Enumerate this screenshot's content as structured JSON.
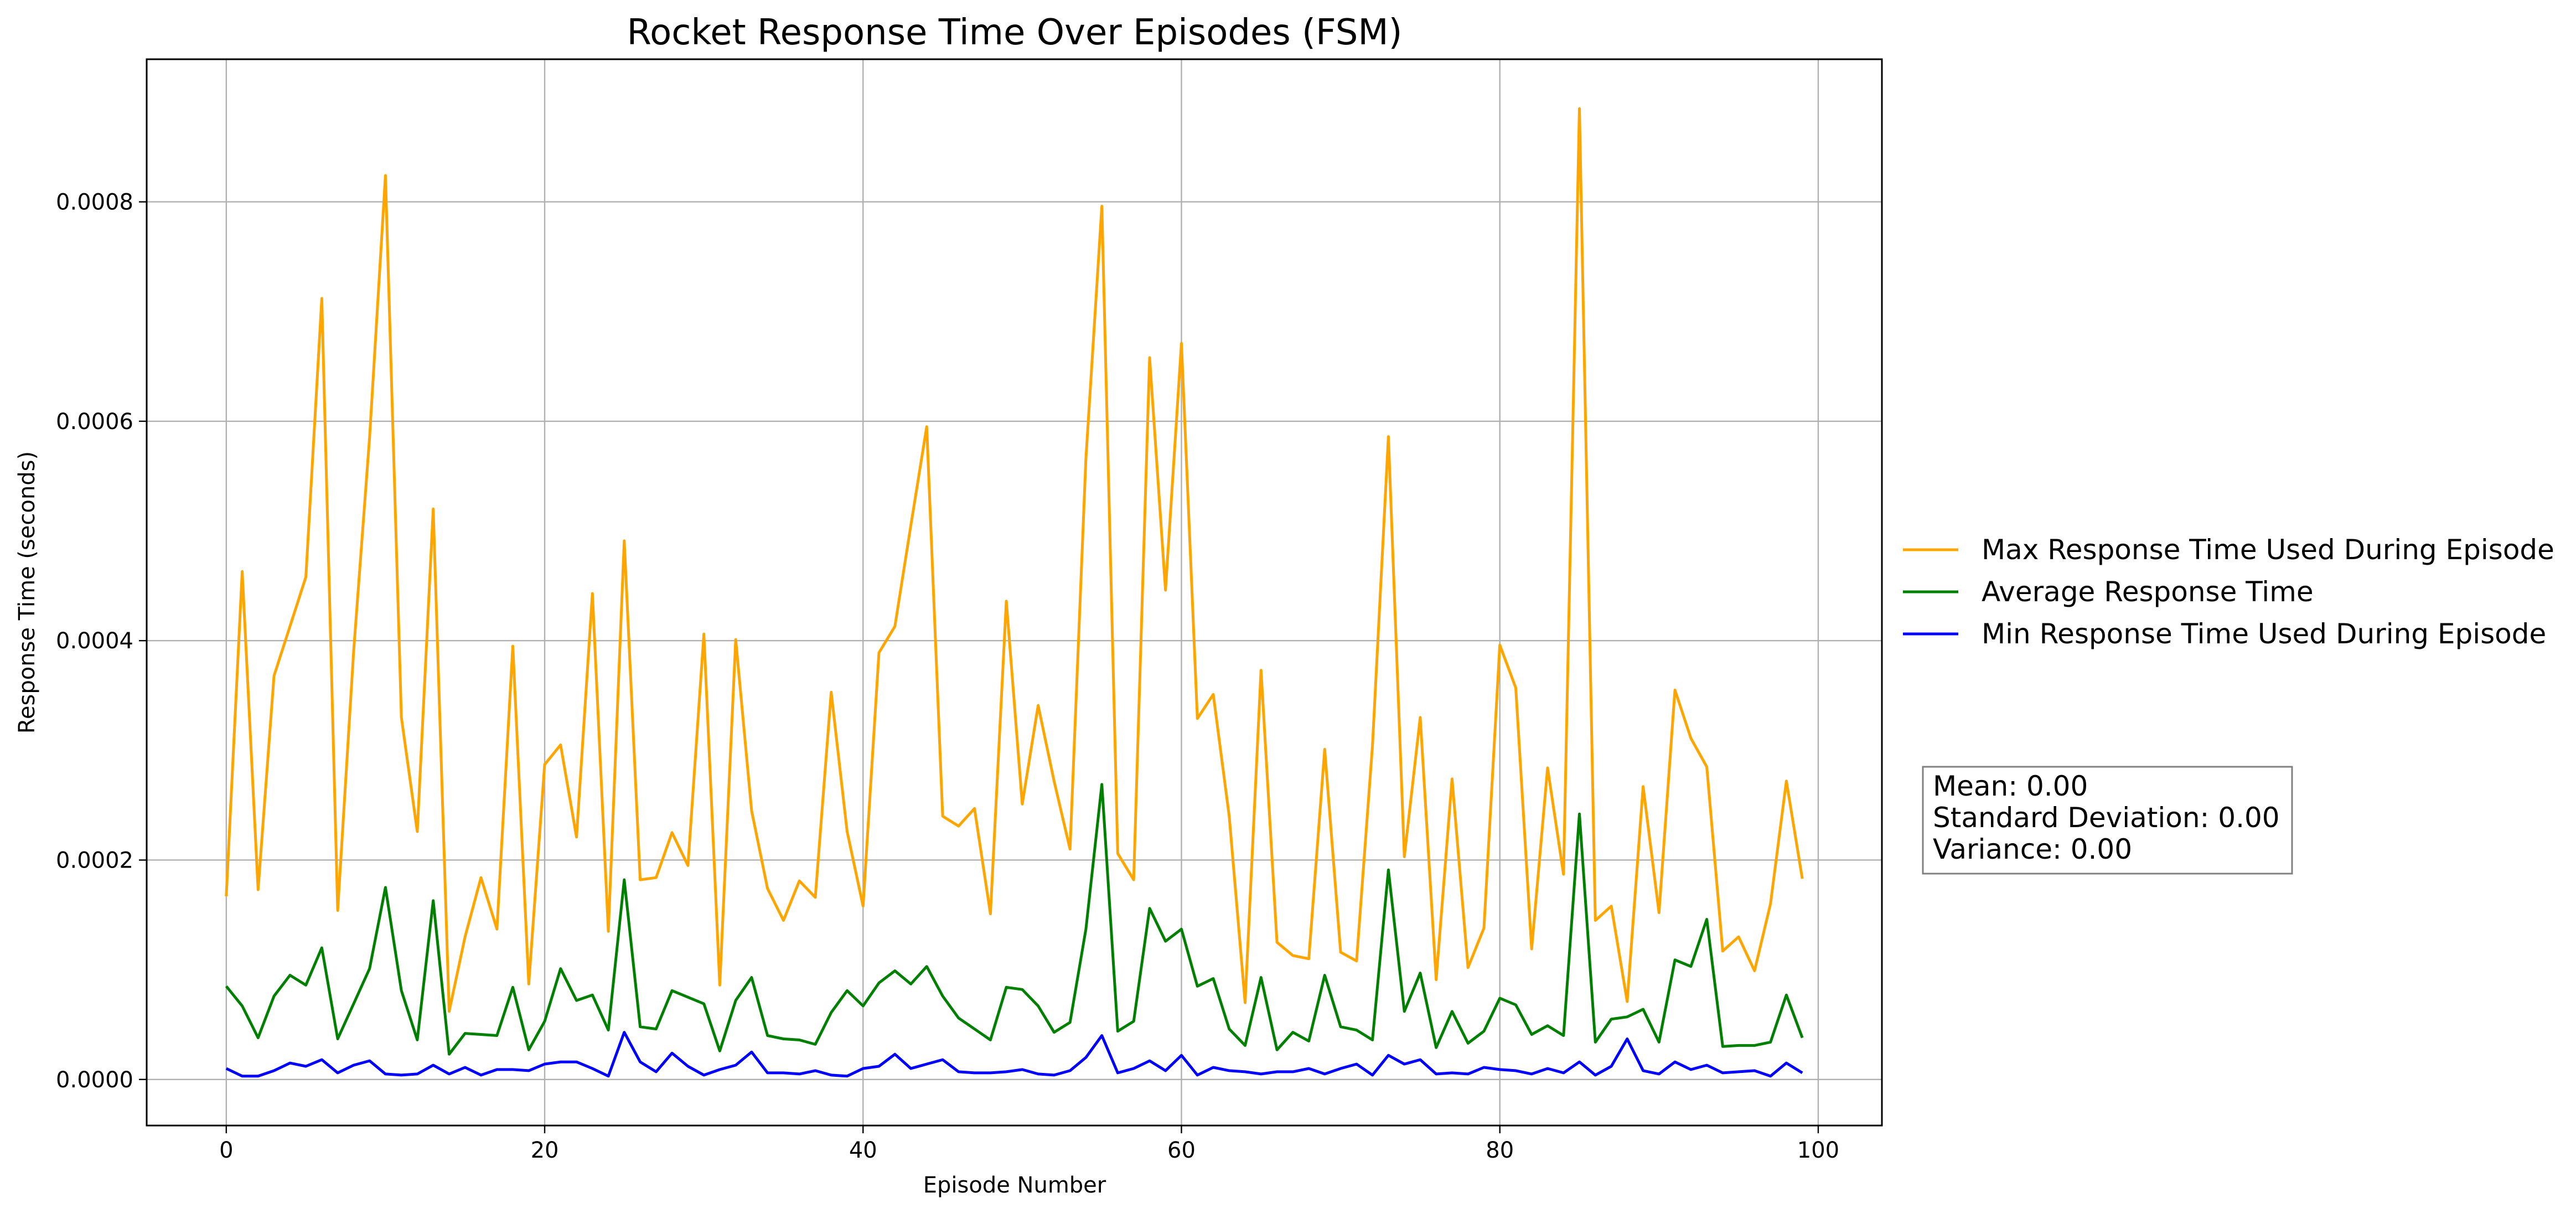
{
  "chart_data": {
    "type": "line",
    "title": "Rocket Response Time Over Episodes (FSM)",
    "xlabel": "Episode Number",
    "ylabel": "Response Time (seconds)",
    "xlim": [
      -5,
      104
    ],
    "ylim": [
      -4.2e-05,
      0.00093
    ],
    "grid": true,
    "x_ticks": [
      0,
      20,
      40,
      60,
      80,
      100
    ],
    "y_ticks": [
      0.0,
      0.0002,
      0.0004,
      0.0006,
      0.0008
    ],
    "x_tick_labels": [
      "0",
      "20",
      "40",
      "60",
      "80",
      "100"
    ],
    "y_tick_labels": [
      "0.0000",
      "0.0002",
      "0.0004",
      "0.0006",
      "0.0008"
    ],
    "legend_position": "outside-right",
    "x": [
      0,
      1,
      2,
      3,
      4,
      5,
      6,
      7,
      8,
      9,
      10,
      11,
      12,
      13,
      14,
      15,
      16,
      17,
      18,
      19,
      20,
      21,
      22,
      23,
      24,
      25,
      26,
      27,
      28,
      29,
      30,
      31,
      32,
      33,
      34,
      35,
      36,
      37,
      38,
      39,
      40,
      41,
      42,
      43,
      44,
      45,
      46,
      47,
      48,
      49,
      50,
      51,
      52,
      53,
      54,
      55,
      56,
      57,
      58,
      59,
      60,
      61,
      62,
      63,
      64,
      65,
      66,
      67,
      68,
      69,
      70,
      71,
      72,
      73,
      74,
      75,
      76,
      77,
      78,
      79,
      80,
      81,
      82,
      83,
      84,
      85,
      86,
      87,
      88,
      89,
      90,
      91,
      92,
      93,
      94,
      95,
      96,
      97,
      98,
      99
    ],
    "series": [
      {
        "name": "Max Response Time Used During Episode",
        "color": "#ffa500",
        "values": [
          0.000167,
          0.000463,
          0.000173,
          0.000368,
          0.000413,
          0.000458,
          0.000712,
          0.000154,
          0.00039,
          0.000585,
          0.000824,
          0.00033,
          0.000226,
          0.00052,
          6.2e-05,
          0.00013,
          0.000184,
          0.000137,
          0.000395,
          8.7e-05,
          0.000287,
          0.000305,
          0.000221,
          0.000443,
          0.000135,
          0.000491,
          0.000182,
          0.000184,
          0.000225,
          0.000195,
          0.000406,
          8.6e-05,
          0.000401,
          0.000245,
          0.000174,
          0.000145,
          0.000181,
          0.000166,
          0.000353,
          0.000226,
          0.000158,
          0.000389,
          0.000413,
          0.000505,
          0.000595,
          0.00024,
          0.000231,
          0.000247,
          0.000151,
          0.000436,
          0.000251,
          0.000341,
          0.000272,
          0.00021,
          0.000566,
          0.000796,
          0.000206,
          0.000182,
          0.000658,
          0.000446,
          0.000671,
          0.000329,
          0.000351,
          0.00024,
          7e-05,
          0.000373,
          0.000125,
          0.000113,
          0.00011,
          0.000301,
          0.000116,
          0.000108,
          0.000304,
          0.000586,
          0.000203,
          0.00033,
          9.1e-05,
          0.000274,
          0.000102,
          0.000138,
          0.000396,
          0.000357,
          0.000119,
          0.000284,
          0.000187,
          0.000885,
          0.000145,
          0.000158,
          7.1e-05,
          0.000267,
          0.000152,
          0.000355,
          0.000311,
          0.000285,
          0.000117,
          0.00013,
          9.9e-05,
          0.00016,
          0.000272,
          0.000183
        ]
      },
      {
        "name": "Average Response Time",
        "color": "#008000",
        "values": [
          8.5e-05,
          6.7e-05,
          3.8e-05,
          7.6e-05,
          9.5e-05,
          8.6e-05,
          0.00012,
          3.7e-05,
          6.9e-05,
          0.000101,
          0.000175,
          8.1e-05,
          3.6e-05,
          0.000163,
          2.3e-05,
          4.2e-05,
          4.1e-05,
          4e-05,
          8.4e-05,
          2.7e-05,
          5.3e-05,
          0.000101,
          7.2e-05,
          7.7e-05,
          4.5e-05,
          0.000182,
          4.8e-05,
          4.6e-05,
          8.1e-05,
          7.5e-05,
          6.9e-05,
          2.6e-05,
          7.2e-05,
          9.3e-05,
          4e-05,
          3.7e-05,
          3.6e-05,
          3.2e-05,
          6.1e-05,
          8.1e-05,
          6.7e-05,
          8.8e-05,
          9.9e-05,
          8.7e-05,
          0.000103,
          7.6e-05,
          5.6e-05,
          4.6e-05,
          3.6e-05,
          8.4e-05,
          8.2e-05,
          6.7e-05,
          4.3e-05,
          5.2e-05,
          0.000137,
          0.000269,
          4.4e-05,
          5.3e-05,
          0.000156,
          0.000126,
          0.000137,
          8.5e-05,
          9.2e-05,
          4.6e-05,
          3.1e-05,
          9.3e-05,
          2.7e-05,
          4.3e-05,
          3.5e-05,
          9.5e-05,
          4.8e-05,
          4.5e-05,
          3.6e-05,
          0.000191,
          6.2e-05,
          9.7e-05,
          2.9e-05,
          6.2e-05,
          3.3e-05,
          4.4e-05,
          7.4e-05,
          6.8e-05,
          4.1e-05,
          4.9e-05,
          4e-05,
          0.000242,
          3.4e-05,
          5.5e-05,
          5.7e-05,
          6.4e-05,
          3.4e-05,
          0.000109,
          0.000103,
          0.000146,
          3e-05,
          3.1e-05,
          3.1e-05,
          3.4e-05,
          7.7e-05,
          3.8e-05
        ]
      },
      {
        "name": "Min Response Time Used During Episode",
        "color": "#0000ff",
        "values": [
          1e-05,
          3e-06,
          3e-06,
          8e-06,
          1.5e-05,
          1.2e-05,
          1.8e-05,
          6e-06,
          1.3e-05,
          1.7e-05,
          5e-06,
          4e-06,
          5e-06,
          1.3e-05,
          5e-06,
          1.1e-05,
          4e-06,
          9e-06,
          9e-06,
          8e-06,
          1.4e-05,
          1.6e-05,
          1.6e-05,
          1e-05,
          3e-06,
          4.3e-05,
          1.6e-05,
          7e-06,
          2.4e-05,
          1.2e-05,
          4e-06,
          9e-06,
          1.3e-05,
          2.5e-05,
          6e-06,
          6e-06,
          5e-06,
          8e-06,
          4e-06,
          3e-06,
          1e-05,
          1.2e-05,
          2.3e-05,
          1e-05,
          1.4e-05,
          1.8e-05,
          7e-06,
          6e-06,
          6e-06,
          7e-06,
          9e-06,
          5e-06,
          4e-06,
          8e-06,
          2e-05,
          4e-05,
          6e-06,
          1e-05,
          1.7e-05,
          8e-06,
          2.2e-05,
          4e-06,
          1.1e-05,
          8e-06,
          7e-06,
          5e-06,
          7e-06,
          7e-06,
          1e-05,
          5e-06,
          1e-05,
          1.4e-05,
          4e-06,
          2.2e-05,
          1.4e-05,
          1.8e-05,
          5e-06,
          6e-06,
          5e-06,
          1.1e-05,
          9e-06,
          8e-06,
          5e-06,
          1e-05,
          6e-06,
          1.6e-05,
          4e-06,
          1.2e-05,
          3.7e-05,
          8e-06,
          5e-06,
          1.6e-05,
          9e-06,
          1.3e-05,
          6e-06,
          7e-06,
          8e-06,
          3e-06,
          1.5e-05,
          6e-06
        ]
      }
    ],
    "stats_box": {
      "lines": [
        "Mean: 0.00",
        "Standard Deviation: 0.00",
        "Variance: 0.00"
      ]
    }
  }
}
